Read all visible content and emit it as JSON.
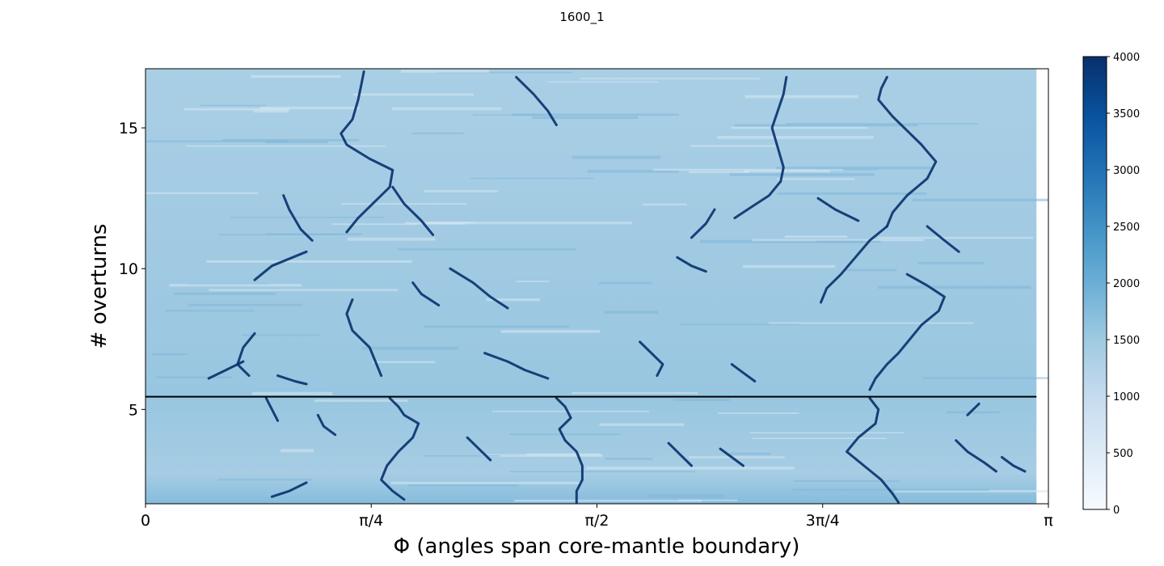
{
  "chart_data": {
    "type": "heatmap",
    "title": "1600_1",
    "xlabel": "Φ (angles span core-mantle boundary)",
    "ylabel": "# overturns",
    "xlim": [
      0,
      3.14159
    ],
    "ylim": [
      1.65,
      17.1
    ],
    "x_ticks": [
      {
        "value": 0,
        "label": "0"
      },
      {
        "value": 0.7854,
        "label": "π/4"
      },
      {
        "value": 1.5708,
        "label": "π/2"
      },
      {
        "value": 2.3562,
        "label": "3π/4"
      },
      {
        "value": 3.14159,
        "label": "π"
      }
    ],
    "y_ticks": [
      {
        "value": 5,
        "label": "5"
      },
      {
        "value": 10,
        "label": "10"
      },
      {
        "value": 15,
        "label": "15"
      }
    ],
    "colormap": "Blues",
    "colorbar": {
      "min": 0,
      "max": 4000,
      "ticks": [
        {
          "value": 0,
          "label": "0"
        },
        {
          "value": 500,
          "label": "500"
        },
        {
          "value": 1000,
          "label": "1000"
        },
        {
          "value": 1500,
          "label": "1500"
        },
        {
          "value": 2000,
          "label": "2000"
        },
        {
          "value": 2500,
          "label": "2500"
        },
        {
          "value": 3000,
          "label": "3000"
        },
        {
          "value": 3500,
          "label": "3500"
        },
        {
          "value": 4000,
          "label": "4000"
        }
      ]
    },
    "background_value": 1700,
    "data_x_max": 3.1,
    "horizontal_line": {
      "y": 5.45,
      "color": "#000000"
    },
    "plume_traces": [
      [
        [
          0.76,
          17.0
        ],
        [
          0.75,
          16.5
        ],
        [
          0.74,
          16.0
        ],
        [
          0.72,
          15.3
        ],
        [
          0.68,
          14.8
        ],
        [
          0.7,
          14.4
        ],
        [
          0.78,
          13.9
        ],
        [
          0.86,
          13.5
        ],
        [
          0.85,
          12.9
        ],
        [
          0.8,
          12.4
        ],
        [
          0.74,
          11.8
        ],
        [
          0.7,
          11.3
        ]
      ],
      [
        [
          0.86,
          12.9
        ],
        [
          0.9,
          12.3
        ],
        [
          0.96,
          11.7
        ],
        [
          1.0,
          11.2
        ]
      ],
      [
        [
          1.29,
          16.8
        ],
        [
          1.35,
          16.2
        ],
        [
          1.4,
          15.6
        ],
        [
          1.43,
          15.1
        ]
      ],
      [
        [
          0.48,
          12.6
        ],
        [
          0.5,
          12.1
        ],
        [
          0.54,
          11.4
        ],
        [
          0.58,
          11.0
        ]
      ],
      [
        [
          0.56,
          10.6
        ],
        [
          0.44,
          10.1
        ],
        [
          0.38,
          9.6
        ]
      ],
      [
        [
          1.06,
          10.0
        ],
        [
          1.14,
          9.5
        ],
        [
          1.2,
          9.0
        ],
        [
          1.26,
          8.6
        ]
      ],
      [
        [
          0.93,
          9.5
        ],
        [
          0.96,
          9.1
        ],
        [
          1.02,
          8.7
        ]
      ],
      [
        [
          0.72,
          8.9
        ],
        [
          0.7,
          8.4
        ],
        [
          0.72,
          7.8
        ],
        [
          0.78,
          7.2
        ],
        [
          0.8,
          6.7
        ],
        [
          0.82,
          6.2
        ]
      ],
      [
        [
          0.38,
          7.7
        ],
        [
          0.34,
          7.2
        ],
        [
          0.32,
          6.6
        ],
        [
          0.36,
          6.2
        ]
      ],
      [
        [
          0.22,
          6.1
        ],
        [
          0.28,
          6.4
        ],
        [
          0.34,
          6.7
        ]
      ],
      [
        [
          0.46,
          6.2
        ],
        [
          0.52,
          6.0
        ],
        [
          0.56,
          5.9
        ]
      ],
      [
        [
          1.18,
          7.0
        ],
        [
          1.26,
          6.7
        ],
        [
          1.32,
          6.4
        ],
        [
          1.4,
          6.1
        ]
      ],
      [
        [
          2.58,
          16.8
        ],
        [
          2.56,
          16.4
        ],
        [
          2.55,
          16.0
        ],
        [
          2.6,
          15.4
        ],
        [
          2.65,
          14.9
        ],
        [
          2.7,
          14.4
        ],
        [
          2.75,
          13.8
        ],
        [
          2.72,
          13.2
        ],
        [
          2.65,
          12.6
        ],
        [
          2.6,
          12.0
        ],
        [
          2.58,
          11.5
        ]
      ],
      [
        [
          2.23,
          16.8
        ],
        [
          2.22,
          16.2
        ],
        [
          2.2,
          15.6
        ],
        [
          2.18,
          15.0
        ],
        [
          2.2,
          14.3
        ],
        [
          2.22,
          13.6
        ],
        [
          2.21,
          13.1
        ],
        [
          2.17,
          12.6
        ],
        [
          2.11,
          12.2
        ],
        [
          2.05,
          11.8
        ]
      ],
      [
        [
          1.98,
          12.1
        ],
        [
          1.95,
          11.6
        ],
        [
          1.9,
          11.1
        ]
      ],
      [
        [
          2.34,
          12.5
        ],
        [
          2.4,
          12.1
        ],
        [
          2.48,
          11.7
        ]
      ],
      [
        [
          2.58,
          11.5
        ],
        [
          2.52,
          11.0
        ],
        [
          2.47,
          10.4
        ],
        [
          2.42,
          9.8
        ],
        [
          2.37,
          9.3
        ],
        [
          2.35,
          8.8
        ]
      ],
      [
        [
          2.65,
          9.8
        ],
        [
          2.72,
          9.4
        ],
        [
          2.78,
          9.0
        ],
        [
          2.76,
          8.5
        ],
        [
          2.7,
          8.0
        ],
        [
          2.66,
          7.5
        ],
        [
          2.62,
          7.0
        ],
        [
          2.58,
          6.6
        ],
        [
          2.54,
          6.1
        ],
        [
          2.52,
          5.7
        ]
      ],
      [
        [
          1.85,
          10.4
        ],
        [
          1.9,
          10.1
        ],
        [
          1.95,
          9.9
        ]
      ],
      [
        [
          2.72,
          11.5
        ],
        [
          2.78,
          11.0
        ],
        [
          2.83,
          10.6
        ]
      ],
      [
        [
          1.72,
          7.4
        ],
        [
          1.76,
          7.0
        ],
        [
          1.8,
          6.6
        ],
        [
          1.78,
          6.2
        ]
      ],
      [
        [
          2.04,
          6.6
        ],
        [
          2.08,
          6.3
        ],
        [
          2.12,
          6.0
        ]
      ],
      [
        [
          0.85,
          5.4
        ],
        [
          0.88,
          5.1
        ],
        [
          0.9,
          4.8
        ],
        [
          0.95,
          4.5
        ],
        [
          0.93,
          4.0
        ],
        [
          0.88,
          3.5
        ],
        [
          0.84,
          3.0
        ],
        [
          0.82,
          2.5
        ],
        [
          0.86,
          2.1
        ],
        [
          0.9,
          1.8
        ]
      ],
      [
        [
          0.42,
          5.4
        ],
        [
          0.44,
          5.0
        ],
        [
          0.46,
          4.6
        ]
      ],
      [
        [
          0.6,
          4.8
        ],
        [
          0.62,
          4.4
        ],
        [
          0.66,
          4.1
        ]
      ],
      [
        [
          1.43,
          5.4
        ],
        [
          1.46,
          5.1
        ],
        [
          1.48,
          4.7
        ],
        [
          1.44,
          4.3
        ],
        [
          1.46,
          3.9
        ],
        [
          1.5,
          3.5
        ],
        [
          1.52,
          3.0
        ],
        [
          1.52,
          2.5
        ],
        [
          1.5,
          2.1
        ],
        [
          1.5,
          1.7
        ]
      ],
      [
        [
          1.12,
          4.0
        ],
        [
          1.16,
          3.6
        ],
        [
          1.2,
          3.2
        ]
      ],
      [
        [
          0.56,
          2.4
        ],
        [
          0.5,
          2.1
        ],
        [
          0.44,
          1.9
        ]
      ],
      [
        [
          2.52,
          5.4
        ],
        [
          2.55,
          5.0
        ],
        [
          2.54,
          4.5
        ],
        [
          2.48,
          4.0
        ],
        [
          2.44,
          3.5
        ],
        [
          2.5,
          3.0
        ],
        [
          2.56,
          2.5
        ],
        [
          2.6,
          2.0
        ],
        [
          2.62,
          1.7
        ]
      ],
      [
        [
          2.9,
          5.2
        ],
        [
          2.86,
          4.8
        ]
      ],
      [
        [
          2.82,
          3.9
        ],
        [
          2.86,
          3.5
        ],
        [
          2.92,
          3.1
        ],
        [
          2.96,
          2.8
        ]
      ],
      [
        [
          2.98,
          3.3
        ],
        [
          3.02,
          3.0
        ],
        [
          3.06,
          2.8
        ]
      ],
      [
        [
          1.82,
          3.8
        ],
        [
          1.86,
          3.4
        ],
        [
          1.9,
          3.0
        ]
      ],
      [
        [
          2.0,
          3.6
        ],
        [
          2.04,
          3.3
        ],
        [
          2.08,
          3.0
        ]
      ]
    ]
  }
}
